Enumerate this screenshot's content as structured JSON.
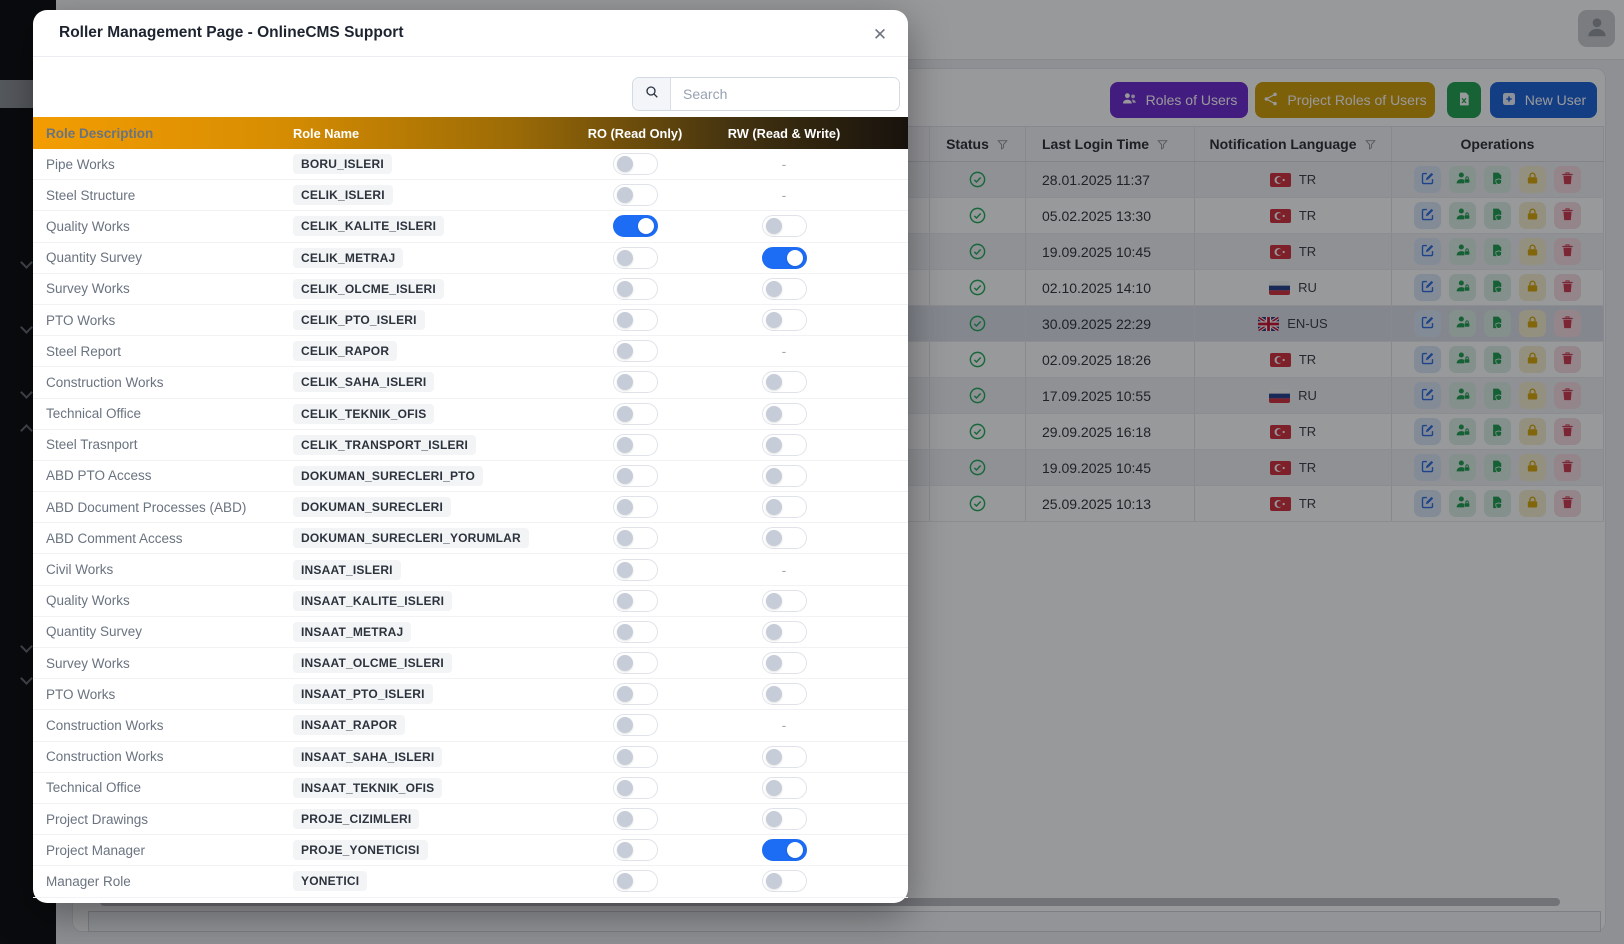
{
  "modal": {
    "title": "Roller Management Page - OnlineCMS Support",
    "close_icon": "close-icon",
    "search_placeholder": "Search",
    "columns": {
      "description": "Role Description",
      "name": "Role Name",
      "ro": "RO (Read Only)",
      "rw": "RW (Read & Write)"
    },
    "dash": "-",
    "toggle_on_color": "#1c6cf4",
    "header_gradient": [
      "#f39d02",
      "#17120d"
    ],
    "roles": [
      {
        "description": "Pipe Works",
        "name": "BORU_ISLERI",
        "ro": "off",
        "rw": "none"
      },
      {
        "description": "Steel Structure",
        "name": "CELIK_ISLERI",
        "ro": "off",
        "rw": "none"
      },
      {
        "description": "Quality Works",
        "name": "CELIK_KALITE_ISLERI",
        "ro": "on",
        "rw": "off"
      },
      {
        "description": "Quantity Survey",
        "name": "CELIK_METRAJ",
        "ro": "off",
        "rw": "on"
      },
      {
        "description": "Survey Works",
        "name": "CELIK_OLCME_ISLERI",
        "ro": "off",
        "rw": "off"
      },
      {
        "description": "PTO Works",
        "name": "CELIK_PTO_ISLERI",
        "ro": "off",
        "rw": "off"
      },
      {
        "description": "Steel Report",
        "name": "CELIK_RAPOR",
        "ro": "off",
        "rw": "none"
      },
      {
        "description": "Construction Works",
        "name": "CELIK_SAHA_ISLERI",
        "ro": "off",
        "rw": "off"
      },
      {
        "description": "Technical Office",
        "name": "CELIK_TEKNIK_OFIS",
        "ro": "off",
        "rw": "off"
      },
      {
        "description": "Steel Trasnport",
        "name": "CELIK_TRANSPORT_ISLERI",
        "ro": "off",
        "rw": "off"
      },
      {
        "description": "ABD PTO Access",
        "name": "DOKUMAN_SURECLERI_PTO",
        "ro": "off",
        "rw": "off"
      },
      {
        "description": "ABD Document Processes (ABD)",
        "name": "DOKUMAN_SURECLERI",
        "ro": "off",
        "rw": "off"
      },
      {
        "description": "ABD Comment Access",
        "name": "DOKUMAN_SURECLERI_YORUMLAR",
        "ro": "off",
        "rw": "off"
      },
      {
        "description": "Civil Works",
        "name": "INSAAT_ISLERI",
        "ro": "off",
        "rw": "none"
      },
      {
        "description": "Quality Works",
        "name": "INSAAT_KALITE_ISLERI",
        "ro": "off",
        "rw": "off"
      },
      {
        "description": "Quantity Survey",
        "name": "INSAAT_METRAJ",
        "ro": "off",
        "rw": "off"
      },
      {
        "description": "Survey Works",
        "name": "INSAAT_OLCME_ISLERI",
        "ro": "off",
        "rw": "off"
      },
      {
        "description": "PTO Works",
        "name": "INSAAT_PTO_ISLERI",
        "ro": "off",
        "rw": "off"
      },
      {
        "description": "Construction Works",
        "name": "INSAAT_RAPOR",
        "ro": "off",
        "rw": "none"
      },
      {
        "description": "Construction Works",
        "name": "INSAAT_SAHA_ISLERI",
        "ro": "off",
        "rw": "off"
      },
      {
        "description": "Technical Office",
        "name": "INSAAT_TEKNIK_OFIS",
        "ro": "off",
        "rw": "off"
      },
      {
        "description": "Project Drawings",
        "name": "PROJE_CIZIMLERI",
        "ro": "off",
        "rw": "off"
      },
      {
        "description": "Project Manager",
        "name": "PROJE_YONETICISI",
        "ro": "off",
        "rw": "on"
      },
      {
        "description": "Manager Role",
        "name": "YONETICI",
        "ro": "off",
        "rw": "off"
      }
    ]
  },
  "page": {
    "actions": {
      "roles_of_users": {
        "label": "Roles of Users",
        "color": "#6d28cf",
        "icon": "users-icon"
      },
      "project_roles_of_users": {
        "label": "Project Roles of Users",
        "color": "#d19e06",
        "icon": "share-icon"
      },
      "export_excel": {
        "color": "#21a351",
        "icon": "excel-icon"
      },
      "new_user": {
        "label": "New User",
        "color": "#1d63d8",
        "icon": "plus-square-icon"
      }
    },
    "user_table": {
      "headers": {
        "status": "Status",
        "last_login": "Last Login Time",
        "language": "Notification Language",
        "operations": "Operations"
      },
      "filter_icon": "filter-icon",
      "status_icon": "check-circle-icon",
      "status_color": "#22a958",
      "operation_icons": [
        {
          "name": "edit-icon",
          "color": "#2b6cdf",
          "bg": "#dbe7f9"
        },
        {
          "name": "user-shield-icon",
          "color": "#1e9e50",
          "bg": "#dcefe3"
        },
        {
          "name": "file-shield-icon",
          "color": "#1e9e50",
          "bg": "#dcefe3"
        },
        {
          "name": "lock-icon",
          "color": "#d9a70a",
          "bg": "#f7efd0"
        },
        {
          "name": "trash-icon",
          "color": "#cf3a50",
          "bg": "#f7dde2"
        }
      ],
      "rows": [
        {
          "login": "28.01.2025 11:37",
          "language": "TR",
          "flag": "tr",
          "selected": false
        },
        {
          "login": "05.02.2025 13:30",
          "language": "TR",
          "flag": "tr",
          "selected": false
        },
        {
          "login": "19.09.2025 10:45",
          "language": "TR",
          "flag": "tr",
          "selected": false
        },
        {
          "login": "02.10.2025 14:10",
          "language": "RU",
          "flag": "ru",
          "selected": false
        },
        {
          "login": "30.09.2025 22:29",
          "language": "EN-US",
          "flag": "gb",
          "selected": true
        },
        {
          "login": "02.09.2025 18:26",
          "language": "TR",
          "flag": "tr",
          "selected": false
        },
        {
          "login": "17.09.2025 10:55",
          "language": "RU",
          "flag": "ru",
          "selected": false
        },
        {
          "login": "29.09.2025 16:18",
          "language": "TR",
          "flag": "tr",
          "selected": false
        },
        {
          "login": "19.09.2025 10:45",
          "language": "TR",
          "flag": "tr",
          "selected": false
        },
        {
          "login": "25.09.2025 10:13",
          "language": "TR",
          "flag": "tr",
          "selected": false
        }
      ]
    },
    "mask_color": "rgba(10,12,16,0.42)"
  }
}
